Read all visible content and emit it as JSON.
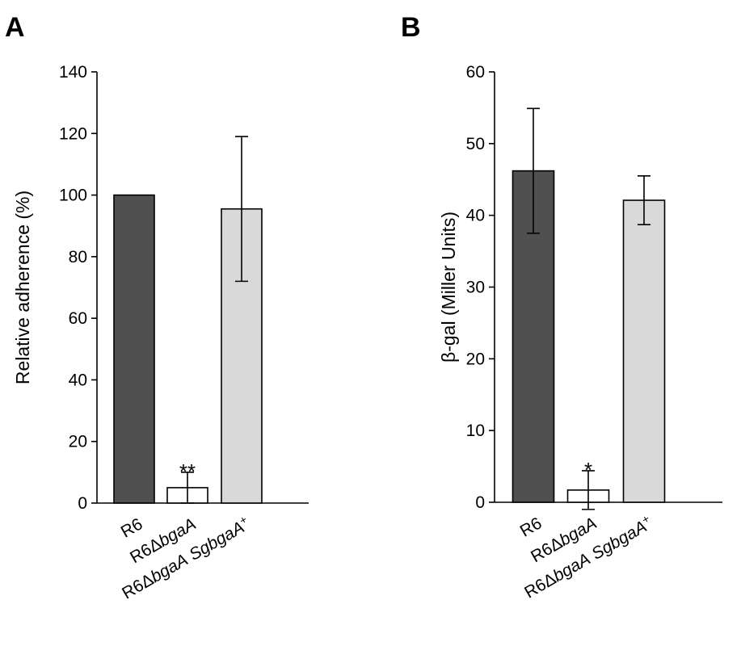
{
  "chart_data": [
    {
      "type": "bar",
      "panel": "A",
      "ylabel": "Relative adherence (%)",
      "ylim": [
        0,
        140
      ],
      "yticks": [
        0,
        20,
        40,
        60,
        80,
        100,
        120,
        140
      ],
      "categories": [
        {
          "parts": [
            {
              "text": "R6",
              "italic": false
            }
          ]
        },
        {
          "parts": [
            {
              "text": "R6Δ",
              "italic": false
            },
            {
              "text": "bgaA",
              "italic": true
            }
          ]
        },
        {
          "parts": [
            {
              "text": "R6Δ",
              "italic": false
            },
            {
              "text": "bgaA",
              "italic": true
            },
            {
              "text": " ",
              "italic": false
            },
            {
              "text": "SgbgaA",
              "italic": true
            },
            {
              "text": "+",
              "italic": false,
              "sup": true
            }
          ]
        }
      ],
      "values": [
        100,
        5,
        95.5
      ],
      "errors": [
        0,
        5,
        23.5
      ],
      "colors": [
        "#505050",
        "#ffffff",
        "#d9d9d9"
      ],
      "significance": [
        "",
        "**",
        ""
      ],
      "grid": false,
      "legend": "none"
    },
    {
      "type": "bar",
      "panel": "B",
      "ylabel": "β-gal (Miller Units)",
      "ylim": [
        0,
        60
      ],
      "yticks": [
        0,
        10,
        20,
        30,
        40,
        50,
        60
      ],
      "categories": [
        {
          "parts": [
            {
              "text": "R6",
              "italic": false
            }
          ]
        },
        {
          "parts": [
            {
              "text": "R6Δ",
              "italic": false
            },
            {
              "text": "bgaA",
              "italic": true
            }
          ]
        },
        {
          "parts": [
            {
              "text": "R6Δ",
              "italic": false
            },
            {
              "text": "bgaA",
              "italic": true
            },
            {
              "text": " ",
              "italic": false
            },
            {
              "text": "SgbgaA",
              "italic": true
            },
            {
              "text": "+",
              "italic": false,
              "sup": true
            }
          ]
        }
      ],
      "values": [
        46.2,
        1.7,
        42.1
      ],
      "errors": [
        8.7,
        2.7,
        3.4
      ],
      "colors": [
        "#505050",
        "#ffffff",
        "#d9d9d9"
      ],
      "significance": [
        "",
        "*",
        ""
      ],
      "grid": false,
      "legend": "none"
    }
  ]
}
